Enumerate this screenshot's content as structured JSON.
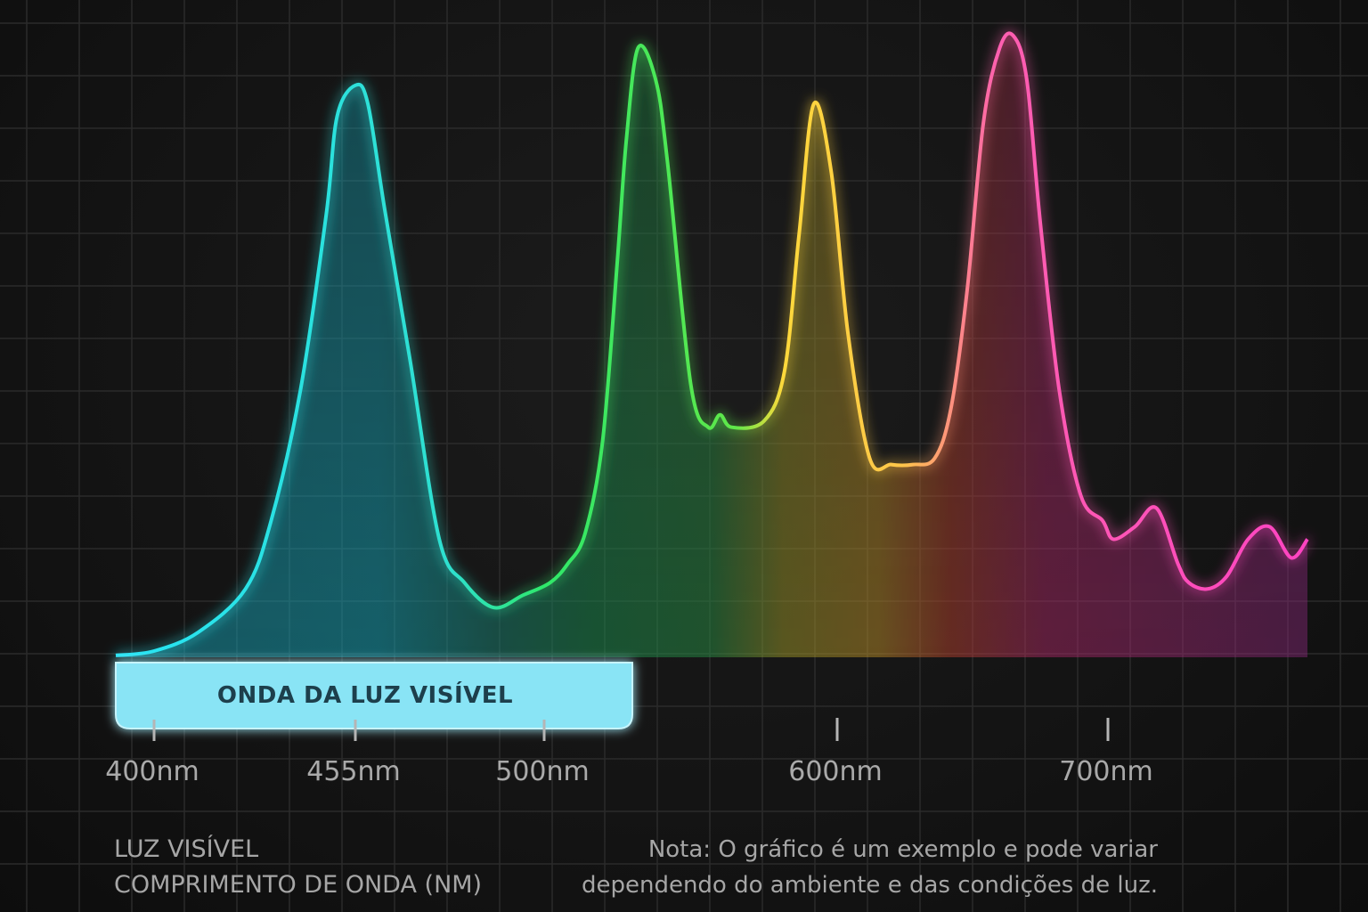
{
  "chart_data": {
    "type": "area",
    "title": "",
    "xlabel": "",
    "ylabel": "",
    "banner_label": "ONDA DA LUZ VISÍVEL",
    "x_ticks": [
      "400nm",
      "455nm",
      "500nm",
      "600nm",
      "700nm"
    ],
    "x_tick_values": [
      400,
      455,
      500,
      600,
      700
    ],
    "xlim": [
      390,
      774
    ],
    "ylim": [
      0,
      100
    ],
    "grid": true,
    "series": [
      {
        "x": [
          388,
          400,
          412,
          425,
          432,
          440,
          447,
          450,
          455,
          458,
          462,
          468,
          475,
          481,
          488,
          495,
          502,
          508,
          514,
          520,
          525,
          528,
          532,
          538,
          542,
          550,
          556,
          560,
          564,
          575,
          582,
          587,
          592,
          598,
          604,
          612,
          620,
          628,
          636,
          642,
          648,
          654,
          660,
          665,
          670,
          675,
          682,
          690,
          698,
          702,
          710,
          718,
          726,
          730,
          737,
          744,
          752,
          760,
          768,
          774
        ],
        "y": [
          0.3,
          1,
          4,
          11,
          22,
          43,
          71,
          87,
          92,
          89,
          72,
          48,
          19,
          12,
          8,
          10,
          12,
          15,
          20,
          35,
          64,
          83,
          98,
          93,
          80,
          44,
          37,
          39,
          37,
          38,
          46,
          68,
          89,
          78,
          52,
          32,
          31,
          31,
          32,
          40,
          59,
          86,
          98,
          100,
          93,
          70,
          43,
          26,
          22,
          19,
          21,
          24,
          15,
          12,
          11,
          13,
          19,
          21,
          16,
          19
        ]
      }
    ],
    "colors": {
      "line_cyan": "#27e4f5",
      "line_green": "#2fe86a",
      "line_yellow": "#ffd93b",
      "line_magenta": "#ff43c2",
      "baseline": "#3fd6ee",
      "banner_fill": "#89e4f5",
      "grid": "#2b2b2b"
    }
  },
  "footer": {
    "left_line1": "LUZ VISÍVEL",
    "left_line2": "COMPRIMENTO DE ONDA (NM)",
    "note_line1": "Nota: O gráfico é um exemplo e pode variar",
    "note_line2": "dependendo do ambiente e das condições de luz."
  }
}
